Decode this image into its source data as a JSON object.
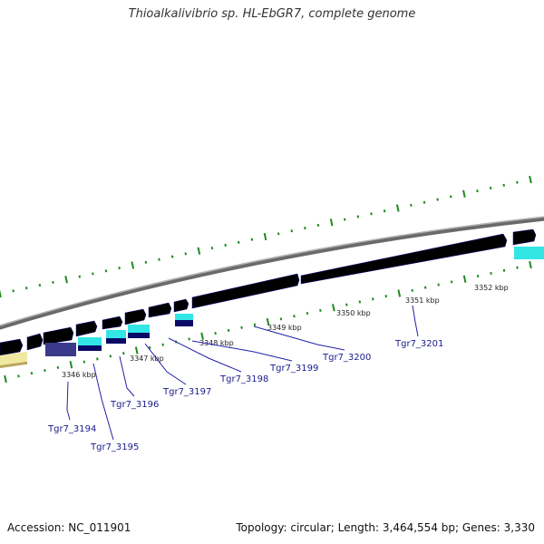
{
  "header": {
    "title": "Thioalkalivibrio sp. HL-EbGR7, complete genome"
  },
  "footer": {
    "accession": "Accession: NC_011901",
    "stats": "Topology: circular; Length: 3,464,554 bp; Genes: 3,330"
  },
  "colors": {
    "forward_gene": "#1a1ae6",
    "forward_gene_dark": "#0a0a96",
    "reverse_gene": "#3a3a8a",
    "cds_cyan": "#33e6e6",
    "cds_navy": "#0a0a66",
    "other_feature": "#f0e8a0",
    "backbone": "#8a8a8a",
    "tick": "#1e8a1e",
    "callout_line": "#2222aa"
  },
  "kbp_labels": [
    "3346 kbp",
    "3347 kbp",
    "3348 kbp",
    "3349 kbp",
    "3350 kbp",
    "3351 kbp",
    "3352 kbp"
  ],
  "genes": [
    {
      "label": "Tgr7_3194"
    },
    {
      "label": "Tgr7_3195"
    },
    {
      "label": "Tgr7_3196"
    },
    {
      "label": "Tgr7_3197"
    },
    {
      "label": "Tgr7_3198"
    },
    {
      "label": "Tgr7_3199"
    },
    {
      "label": "Tgr7_3200"
    },
    {
      "label": "Tgr7_3201"
    }
  ]
}
